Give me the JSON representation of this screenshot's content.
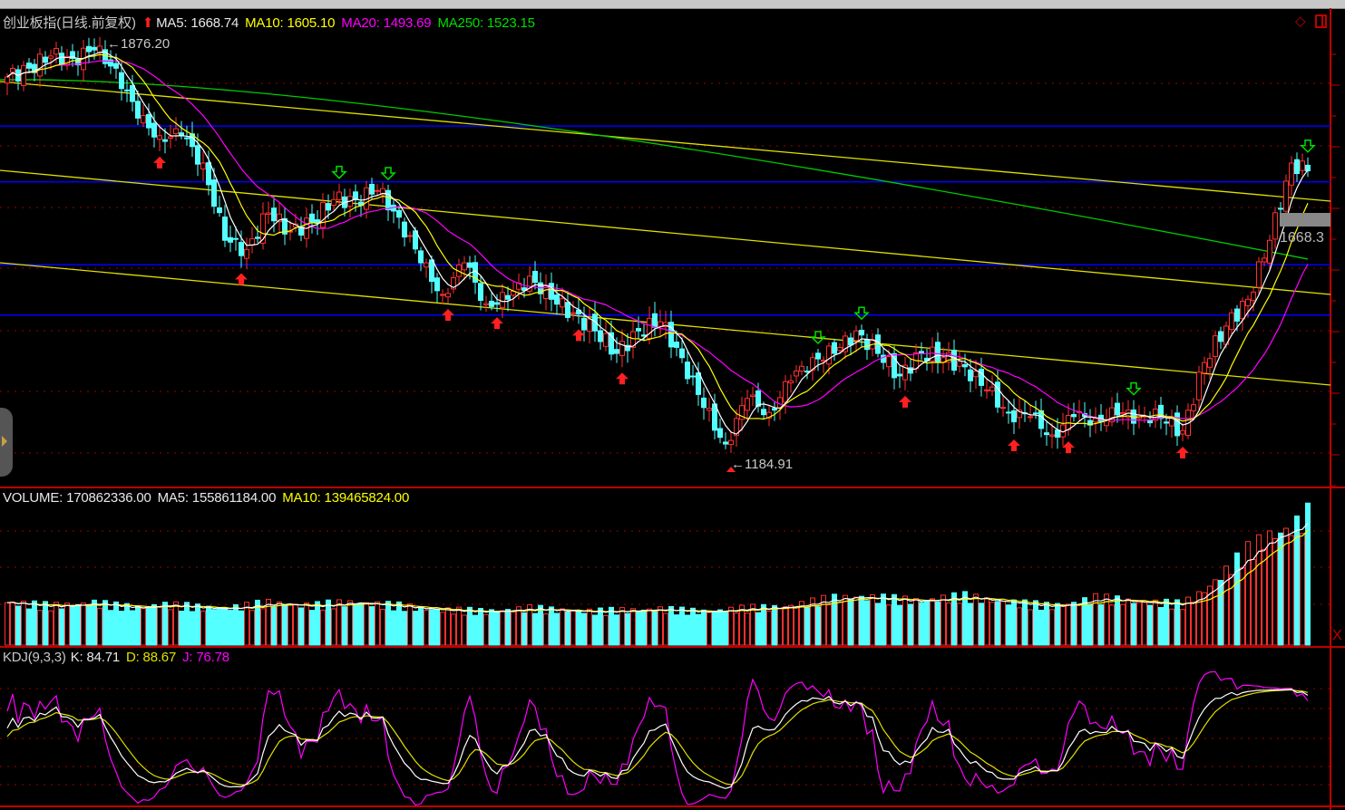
{
  "header": {
    "title": "创业板指(日线.前复权)",
    "ma5": "MA5: 1668.74",
    "ma10": "MA10: 1605.10",
    "ma20": "MA20: 1493.69",
    "ma250": "MA250: 1523.15"
  },
  "volume_header": {
    "volume": "VOLUME: 170862336.00",
    "ma5": "MA5: 155861184.00",
    "ma10": "MA10: 139465824.00"
  },
  "kdj_header": {
    "name": "KDJ(9,3,3)",
    "k": "K: 84.71",
    "d": "D: 88.67",
    "j": "J: 76.78"
  },
  "annotations": {
    "high_label": "1876.20",
    "low_label": "1184.91",
    "last_price_tag": "1668.3"
  },
  "colors": {
    "up": "#ff3030",
    "down": "#54ffff",
    "ma5": "#ffffff",
    "ma10": "#ffff00",
    "ma20": "#ff00ff",
    "ma250": "#00cc00",
    "trendline": "#e0e000",
    "level_line": "#0000ff",
    "grid": "#a00000"
  },
  "chart_data": {
    "type": "candlestick",
    "candle_count": 240,
    "sampled_closes_every_4_candles": [
      1822.6,
      1837,
      1857,
      1853,
      1867,
      1837,
      1755,
      1726,
      1726,
      1681,
      1554,
      1539,
      1599,
      1569,
      1584,
      1621,
      1621,
      1636,
      1592,
      1517,
      1465,
      1517,
      1450,
      1457,
      1495,
      1457,
      1435,
      1405,
      1368,
      1405,
      1420,
      1361,
      1279,
      1219,
      1294,
      1271,
      1323,
      1361,
      1368,
      1405,
      1368,
      1331,
      1368,
      1361,
      1346,
      1308,
      1271,
      1264,
      1234,
      1264,
      1261,
      1267,
      1267,
      1261,
      1241,
      1353,
      1413,
      1457,
      1554,
      1681,
      1668.3
    ],
    "sampled_volume_millions_every_4_candles": [
      55,
      52,
      50,
      52,
      54,
      50,
      48,
      52,
      50,
      48,
      47,
      50,
      54,
      52,
      50,
      53,
      55,
      52,
      50,
      47,
      45,
      44,
      43,
      45,
      47,
      45,
      44,
      43,
      44,
      45,
      46,
      44,
      43,
      45,
      47,
      48,
      50,
      55,
      60,
      62,
      60,
      58,
      57,
      60,
      62,
      58,
      55,
      52,
      50,
      54,
      60,
      58,
      55,
      54,
      52,
      70,
      95,
      120,
      140,
      150,
      170.86
    ],
    "high": 1876.2,
    "low": 1184.91,
    "level_lines": [
      1742,
      1650,
      1514,
      1431
    ],
    "trendlines": [
      [
        1815.1,
        1618.4
      ],
      [
        1669.1,
        1465
      ],
      [
        1517.1,
        1316
      ]
    ],
    "ma250_line": [
      1818,
      1523.15
    ],
    "buy_signal_candles": [
      28,
      43,
      81,
      90,
      105,
      113,
      165,
      185,
      195,
      216
    ],
    "sell_signal_candles": [
      61,
      70,
      149,
      157,
      207,
      239
    ]
  }
}
